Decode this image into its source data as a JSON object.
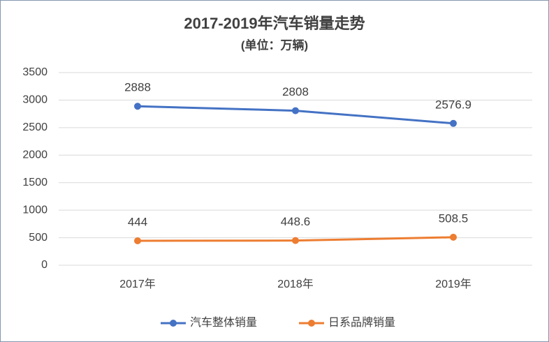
{
  "chart_data": {
    "type": "line",
    "title": "2017-2019年汽车销量走势",
    "subtitle": "(单位：万辆)",
    "categories": [
      "2017年",
      "2018年",
      "2019年"
    ],
    "series": [
      {
        "name": "汽车整体销量",
        "color": "#4472c4",
        "values": [
          2888,
          2808,
          2576.9
        ]
      },
      {
        "name": "日系品牌销量",
        "color": "#ed7d31",
        "values": [
          444,
          448.6,
          508.5
        ]
      }
    ],
    "ylim": [
      0,
      3500
    ],
    "yticks": [
      0,
      500,
      1000,
      1500,
      2000,
      2500,
      3000,
      3500
    ],
    "grid": true,
    "legend": "bottom"
  }
}
